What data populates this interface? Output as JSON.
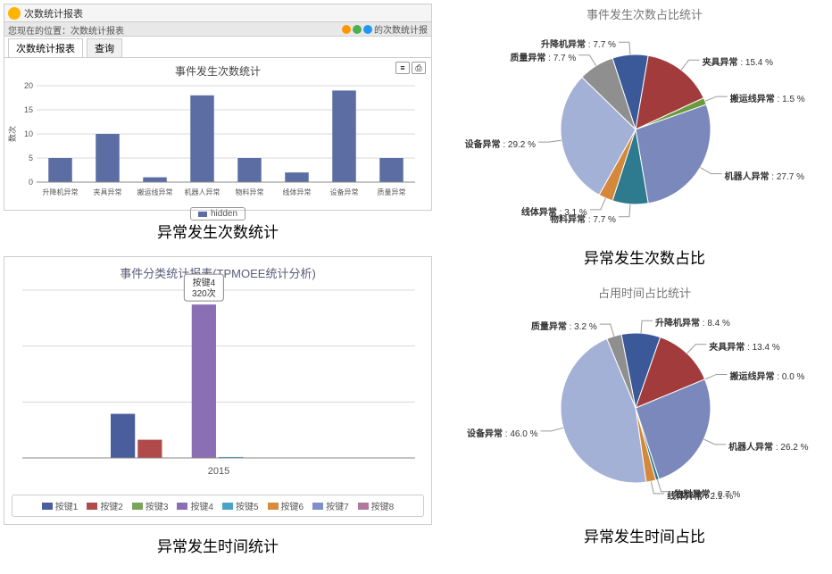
{
  "topLeft": {
    "windowTitle": "次数统计报表",
    "backBar": "您现在的位置：次数统计报表",
    "backBarRight": "的次数统计报",
    "tabs": [
      {
        "label": "次数统计报表",
        "active": true
      },
      {
        "label": "查询",
        "active": false
      }
    ],
    "chart": {
      "type": "bar",
      "title": "事件发生次数统计",
      "categories": [
        "升降机异常",
        "夹具异常",
        "搬运线异常",
        "机器人异常",
        "物料异常",
        "线体异常",
        "设备异常",
        "质量异常"
      ],
      "values": [
        5,
        10,
        1,
        18,
        5,
        2,
        19,
        5
      ],
      "bar_color": "#5b6da3",
      "ylim": [
        0,
        20
      ],
      "ytick_step": 5,
      "ylabel": "数次",
      "grid_color": "#d8d8d8",
      "axis_color": "#888",
      "font_size": 9
    },
    "legendLabel": "hidden",
    "caption": "异常发生次数统计"
  },
  "bottomLeft": {
    "chart": {
      "type": "bar",
      "title": "事件分类统计报表(TPMOEE统计分析)",
      "xaxis_label": "2015",
      "values": [
        92,
        38,
        0,
        320,
        2,
        0,
        0,
        0
      ],
      "colors": [
        "#4a5e9e",
        "#b14b4b",
        "#7aa35b",
        "#8b6fb5",
        "#4aa3c7",
        "#d88b3f",
        "#7d90c9",
        "#b07aa0"
      ],
      "ylim": [
        0,
        350
      ],
      "grid_color": "#d8d8d8",
      "tooltip_title": "按键4",
      "tooltip_value": "320次"
    },
    "legend": [
      {
        "label": "按键1",
        "color": "#4a5e9e"
      },
      {
        "label": "按键2",
        "color": "#b14b4b"
      },
      {
        "label": "按键3",
        "color": "#7aa35b"
      },
      {
        "label": "按键4",
        "color": "#8b6fb5"
      },
      {
        "label": "按键5",
        "color": "#4aa3c7"
      },
      {
        "label": "按键6",
        "color": "#d88b3f"
      },
      {
        "label": "按键7",
        "color": "#7d90c9"
      },
      {
        "label": "按键8",
        "color": "#b07aa0"
      }
    ],
    "caption": "异常发生时间统计"
  },
  "topRight": {
    "title": "事件发生次数占比统计",
    "slices": [
      {
        "label": "升降机异常",
        "pct": 7.7,
        "color": "#3b5998"
      },
      {
        "label": "夹具异常",
        "pct": 15.4,
        "color": "#a23c3c"
      },
      {
        "label": "搬运线异常",
        "pct": 1.5,
        "color": "#6a9a3d"
      },
      {
        "label": "机器人异常",
        "pct": 27.7,
        "color": "#7a88bb"
      },
      {
        "label": "物料异常",
        "pct": 7.7,
        "color": "#2e7a8f"
      },
      {
        "label": "线体异常",
        "pct": 3.1,
        "color": "#d4883b"
      },
      {
        "label": "设备异常",
        "pct": 29.2,
        "color": "#a3b1d6"
      },
      {
        "label": "质量异常",
        "pct": 7.7,
        "color": "#8f8f8f"
      }
    ],
    "caption": "异常发生次数占比"
  },
  "bottomRight": {
    "title": "占用时间占比统计",
    "slices": [
      {
        "label": "升降机异常",
        "pct": 8.4,
        "color": "#3b5998"
      },
      {
        "label": "夹具异常",
        "pct": 13.4,
        "color": "#a23c3c"
      },
      {
        "label": "搬运线异常",
        "pct": 0.0,
        "color": "#6a9a3d"
      },
      {
        "label": "机器人异常",
        "pct": 26.2,
        "color": "#7a88bb"
      },
      {
        "label": "物料异常",
        "pct": 0.7,
        "color": "#2e7a8f"
      },
      {
        "label": "线体异常",
        "pct": 2.1,
        "color": "#d4883b"
      },
      {
        "label": "设备异常",
        "pct": 46.0,
        "color": "#a3b1d6"
      },
      {
        "label": "质量异常",
        "pct": 3.2,
        "color": "#8f8f8f"
      }
    ],
    "caption": "异常发生时间占比"
  }
}
